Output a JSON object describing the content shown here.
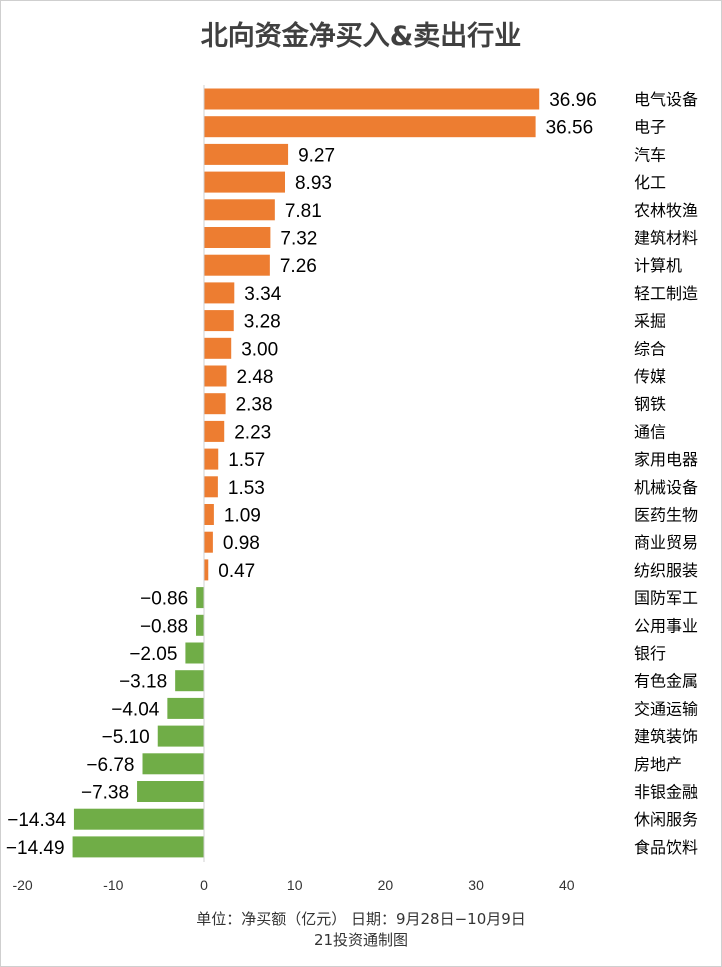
{
  "chart_data": {
    "type": "bar",
    "orientation": "horizontal",
    "title": "北向资金净买入&卖出行业",
    "categories": [
      "电气设备",
      "电子",
      "汽车",
      "化工",
      "农林牧渔",
      "建筑材料",
      "计算机",
      "轻工制造",
      "采掘",
      "综合",
      "传媒",
      "钢铁",
      "通信",
      "家用电器",
      "机械设备",
      "医药生物",
      "商业贸易",
      "纺织服装",
      "国防军工",
      "公用事业",
      "银行",
      "有色金属",
      "交通运输",
      "建筑装饰",
      "房地产",
      "非银金融",
      "休闲服务",
      "食品饮料"
    ],
    "values": [
      36.96,
      36.56,
      9.27,
      8.93,
      7.81,
      7.32,
      7.26,
      3.34,
      3.28,
      3.0,
      2.48,
      2.38,
      2.23,
      1.57,
      1.53,
      1.09,
      0.98,
      0.47,
      -0.86,
      -0.88,
      -2.05,
      -3.18,
      -4.04,
      -5.1,
      -6.78,
      -7.38,
      -14.34,
      -14.49
    ],
    "value_labels": [
      "36.96",
      "36.56",
      "9.27",
      "8.93",
      "7.81",
      "7.32",
      "7.26",
      "3.34",
      "3.28",
      "3.00",
      "2.48",
      "2.38",
      "2.23",
      "1.57",
      "1.53",
      "1.09",
      "0.98",
      "0.47",
      "−0.86",
      "−0.88",
      "−2.05",
      "−3.18",
      "−4.04",
      "−5.10",
      "−6.78",
      "−7.38",
      "−14.34",
      "−14.49"
    ],
    "x_ticks": [
      -20,
      -10,
      0,
      10,
      20,
      30,
      40
    ],
    "x_tick_labels": [
      "-20",
      "-10",
      "0",
      "10",
      "20",
      "30",
      "40"
    ],
    "xlim": [
      -20,
      40
    ],
    "grid": false,
    "legend": "none",
    "colors": {
      "positive": "#ED7D31",
      "negative": "#70AD47",
      "axis": "#d0d0d0",
      "text": "#000000"
    }
  },
  "footer": {
    "line1": "单位：净买额（亿元） 日期：9月28日−10月9日",
    "line2": "21投资通制图"
  }
}
